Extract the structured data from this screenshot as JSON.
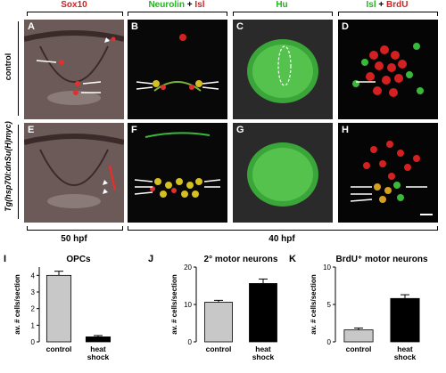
{
  "headers": {
    "sox10": "Sox10",
    "neurolin": "Neurolin",
    "plus1": " + ",
    "isl1": "Isl",
    "hu": "Hu",
    "isl2": "Isl",
    "plus2": " + ",
    "brdu": "BrdU"
  },
  "rows": {
    "control": "control",
    "tg": "Tg(hsp70l:dnSu(H)myc)"
  },
  "panel_letters": [
    "A",
    "B",
    "C",
    "D",
    "E",
    "F",
    "G",
    "H"
  ],
  "ages": {
    "left": "50 hpf",
    "right": "40 hpf"
  },
  "chart_data": [
    {
      "type": "bar",
      "panel": "I",
      "title": "OPCs",
      "ylabel": "av. # cells/section",
      "categories": [
        "control",
        "heat shock"
      ],
      "values": [
        4.0,
        0.3
      ],
      "errors": [
        0.25,
        0.08
      ],
      "ylim": [
        0,
        4.5
      ],
      "yticks": [
        0,
        1,
        2,
        3,
        4
      ],
      "colors": [
        "#c8c8c8",
        "#000000"
      ]
    },
    {
      "type": "bar",
      "panel": "J",
      "title": "2° motor neurons",
      "ylabel": "av. # cells/section",
      "categories": [
        "control",
        "heat shock"
      ],
      "values": [
        10.6,
        15.6
      ],
      "errors": [
        0.5,
        1.2
      ],
      "ylim": [
        0,
        20
      ],
      "yticks": [
        0,
        10,
        20
      ],
      "colors": [
        "#c8c8c8",
        "#000000"
      ]
    },
    {
      "type": "bar",
      "panel": "K",
      "title": "BrdU⁺ motor neurons",
      "ylabel": "av. # cells/section",
      "categories": [
        "control",
        "heat shock"
      ],
      "values": [
        1.6,
        5.8
      ],
      "errors": [
        0.25,
        0.5
      ],
      "ylim": [
        0,
        10
      ],
      "yticks": [
        0,
        5,
        10
      ],
      "colors": [
        "#c8c8c8",
        "#000000"
      ]
    }
  ]
}
